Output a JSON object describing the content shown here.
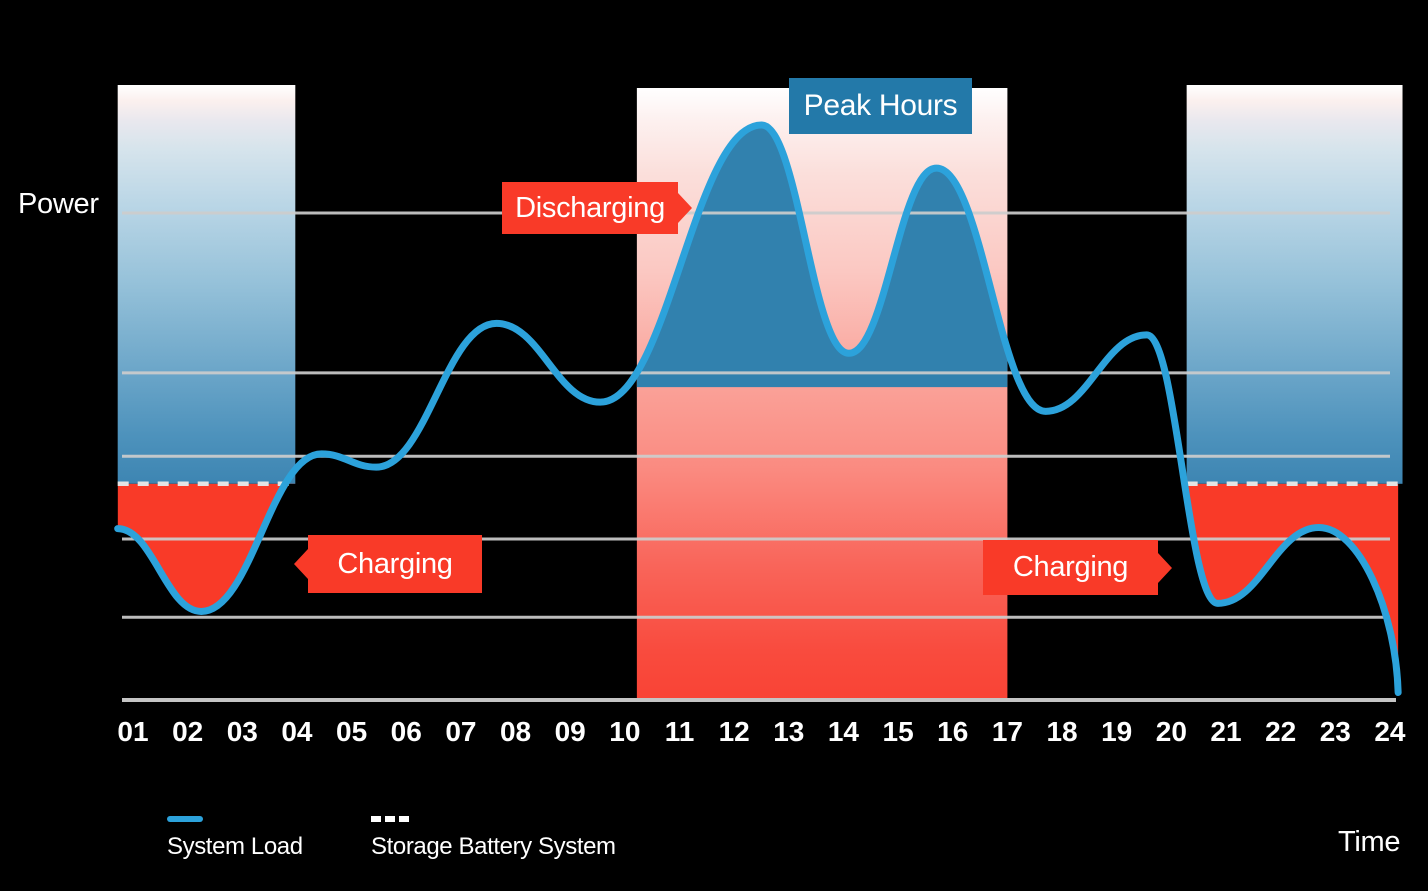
{
  "labels": {
    "power": "Power",
    "time": "Time"
  },
  "legend": [
    {
      "name": "System Load",
      "swatch": "line",
      "color": "#2CA2DB"
    },
    {
      "name": "Storage Battery System",
      "swatch": "dashed",
      "color": "#FFFFFF"
    }
  ],
  "annotations": {
    "peak_hours": {
      "label": "Peak Hours",
      "color": "#2379A9",
      "arrow": "none"
    },
    "discharging": {
      "label": "Discharging",
      "color": "#F93A28",
      "arrow": "right"
    },
    "charging_left": {
      "label": "Charging",
      "color": "#F93A28",
      "arrow": "left"
    },
    "charging_right": {
      "label": "Charging",
      "color": "#F93A28",
      "arrow": "right"
    }
  },
  "chart_data": {
    "type": "area",
    "title": "",
    "xlabel": "Time",
    "ylabel": "Power",
    "x_ticks": [
      "01",
      "02",
      "03",
      "04",
      "05",
      "06",
      "07",
      "08",
      "09",
      "10",
      "11",
      "12",
      "13",
      "14",
      "15",
      "16",
      "17",
      "18",
      "19",
      "20",
      "21",
      "22",
      "23",
      "24"
    ],
    "ylim": [
      0,
      107
    ],
    "grid": "horizontal",
    "legend_position": "bottom-left",
    "series": [
      {
        "name": "System Load",
        "color": "#2CA2DB",
        "points_hour_value": [
          [
            0.72,
            29.8
          ],
          [
            2.25,
            15.4
          ],
          [
            4.45,
            42.8
          ],
          [
            5.45,
            40.5
          ],
          [
            7.65,
            65.5
          ],
          [
            9.55,
            51.8
          ],
          [
            12.5,
            100.0
          ],
          [
            14.1,
            60.3
          ],
          [
            15.7,
            92.5
          ],
          [
            17.7,
            50.2
          ],
          [
            19.55,
            63.5
          ],
          [
            20.85,
            16.8
          ],
          [
            22.7,
            30.0
          ],
          [
            24.15,
            1.3
          ]
        ]
      }
    ],
    "battery_capacity_level": 37.6,
    "discharge_base_level": 54.4,
    "gridline_levels": [
      84.7,
      56.9,
      42.4,
      28.0,
      14.4
    ],
    "regions": [
      {
        "kind": "charging",
        "hours": [
          0.72,
          3.97
        ]
      },
      {
        "kind": "peak_discharging",
        "hours": [
          10.22,
          17.0
        ]
      },
      {
        "kind": "charging",
        "hours": [
          20.28,
          24.23
        ]
      }
    ],
    "band_gradients": {
      "side": [
        [
          0,
          "#FFFFFF"
        ],
        [
          0.04,
          "#FBF0EE"
        ],
        [
          0.09,
          "#E9E8EE"
        ],
        [
          0.16,
          "#D6E4EC"
        ],
        [
          0.3,
          "#BAD6E6"
        ],
        [
          0.5,
          "#95C1D9"
        ],
        [
          0.7,
          "#6FA8CA"
        ],
        [
          0.88,
          "#4D92BC"
        ],
        [
          1,
          "#3D85B2"
        ]
      ],
      "middle": [
        [
          0,
          "#FFFFFF"
        ],
        [
          0.05,
          "#FDF1F0"
        ],
        [
          0.14,
          "#FBDFDB"
        ],
        [
          0.3,
          "#FBC8C2"
        ],
        [
          0.47,
          "#FAA49B"
        ],
        [
          0.62,
          "#FA8B81"
        ],
        [
          0.78,
          "#F9655A"
        ],
        [
          0.92,
          "#F94B3E"
        ],
        [
          1,
          "#F94335"
        ]
      ]
    },
    "colors": {
      "curve": "#2CA2DB",
      "discharge_fill": "#3181AE",
      "charge_fill": "#F93A28",
      "gridline": "#CDCDCD",
      "axis": "#C5C5C5",
      "battery_dashed_line": "#E4E4E4",
      "tick_text": "#FFFFFF"
    }
  }
}
